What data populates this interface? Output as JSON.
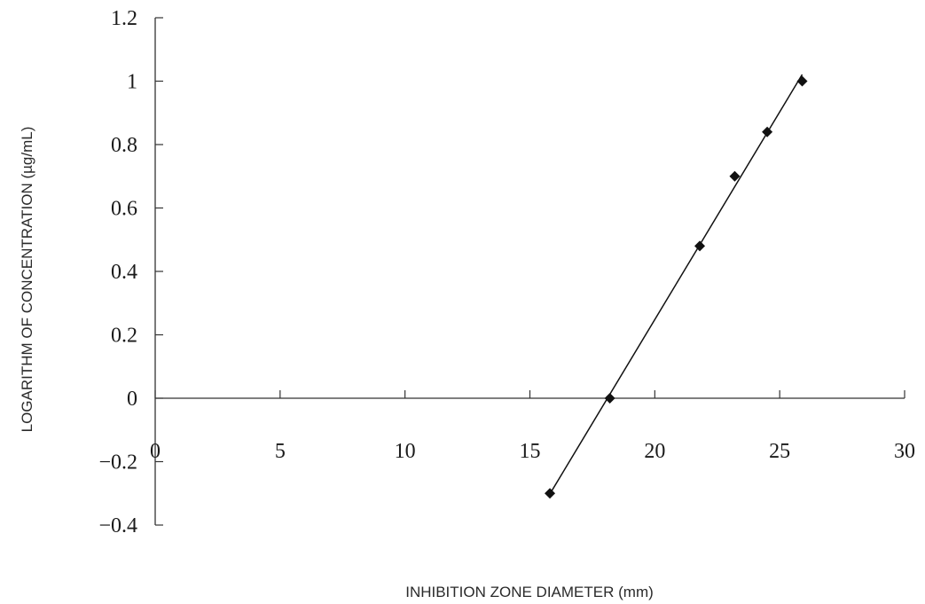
{
  "chart_data": {
    "type": "scatter",
    "title": "",
    "xlabel": "INHIBITION ZONE DIAMETER (mm)",
    "ylabel": "LOGARITHM OF CONCENTRATION (µg/mL)",
    "xlim": [
      0,
      30
    ],
    "ylim": [
      -0.4,
      1.2
    ],
    "x_ticks": [
      0,
      5,
      10,
      15,
      20,
      25,
      30
    ],
    "x_tick_labels": [
      "0",
      "5",
      "10",
      "15",
      "20",
      "25",
      "30"
    ],
    "y_ticks": [
      1.2,
      1,
      0.8,
      0.6,
      0.4,
      0.2,
      0,
      -0.2,
      -0.4
    ],
    "y_tick_labels": [
      "1.2",
      "1",
      "0.8",
      "0.6",
      "0.4",
      "0.2",
      "0",
      "−0.2",
      "−0.4"
    ],
    "grid": false,
    "series": [
      {
        "color": "#111111",
        "marker": "diamond",
        "points": [
          {
            "x": 15.8,
            "y": -0.3
          },
          {
            "x": 18.2,
            "y": 0.0
          },
          {
            "x": 21.8,
            "y": 0.48
          },
          {
            "x": 23.2,
            "y": 0.7
          },
          {
            "x": 24.5,
            "y": 0.84
          },
          {
            "x": 25.9,
            "y": 1.0
          }
        ]
      }
    ],
    "trendline": {
      "type": "linear",
      "x_range": [
        15.8,
        25.9
      ],
      "color": "#111111"
    }
  }
}
